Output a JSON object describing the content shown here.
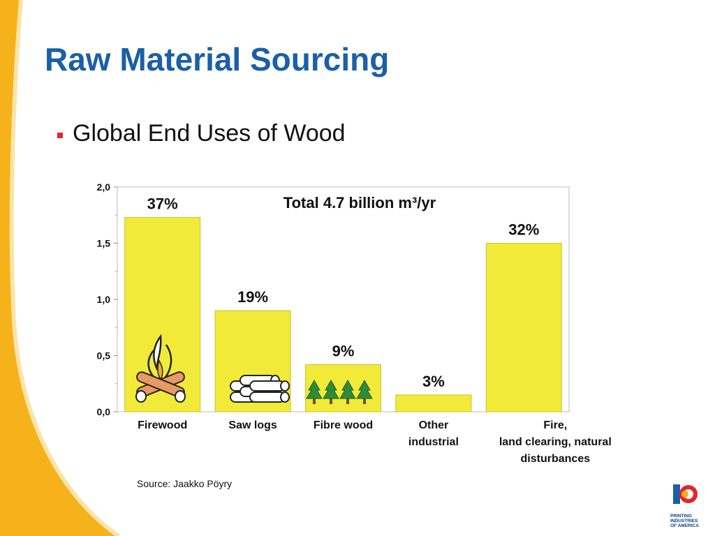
{
  "slide": {
    "title": "Raw Material Sourcing",
    "bullet": "Global End Uses of Wood",
    "source": "Source: Jaakko Pöyry",
    "logo_lines": [
      "PRINTING",
      "INDUSTRIES",
      "OF AMERICA"
    ]
  },
  "colors": {
    "title": "#1a5fa8",
    "bullet_marker": "#e8232a",
    "bar_fill": "#f2ea38",
    "bar_stroke": "#c9c233",
    "left_band": "#f6b21b"
  },
  "icons": [
    "campfire-icon",
    "saw-logs-icon",
    "pine-trees-icon",
    "printing-industries-logo-icon"
  ],
  "chart_data": {
    "type": "bar",
    "title": "Total 4.7 billion m³/yr",
    "categories": [
      "Firewood",
      "Saw logs",
      "Fibre wood",
      "Other\nindustrial",
      "Fire,\nland clearing, natural\ndisturbances"
    ],
    "values": [
      1.73,
      0.9,
      0.42,
      0.15,
      1.5
    ],
    "data_labels": [
      "37%",
      "19%",
      "9%",
      "3%",
      "32%"
    ],
    "yticks": [
      "0,0",
      "0,5",
      "1,0",
      "1,5",
      "2,0"
    ],
    "ylim": [
      0,
      2.0
    ],
    "grid": false,
    "legend": "none"
  }
}
